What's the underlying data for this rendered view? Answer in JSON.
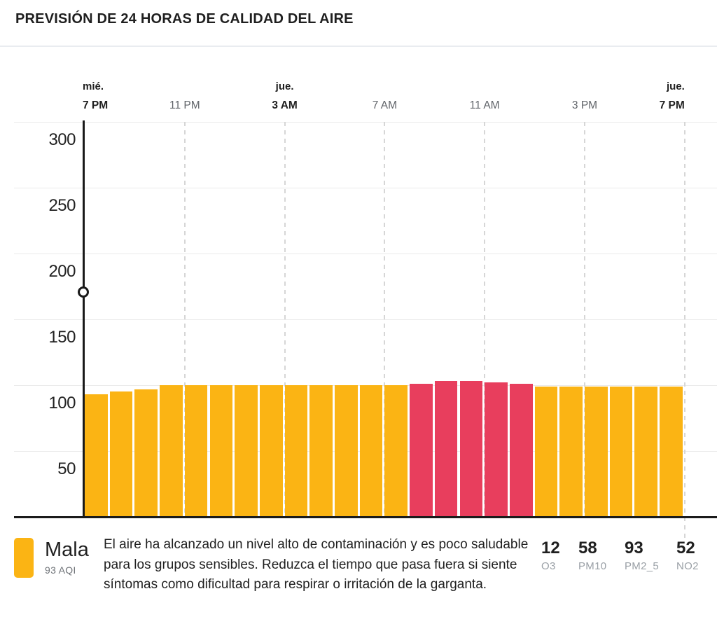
{
  "header": {
    "title": "PREVISIÓN DE 24 HORAS DE CALIDAD DEL AIRE"
  },
  "chart_data": {
    "type": "bar",
    "title": "PREVISIÓN DE 24 HORAS DE CALIDAD DEL AIRE",
    "xlabel": "",
    "ylabel": "",
    "ylim": [
      0,
      320
    ],
    "grid": true,
    "y_ticks": [
      300,
      250,
      200,
      150,
      100,
      50
    ],
    "x_ticks": [
      {
        "day": "mié.",
        "hour": "7 PM",
        "bold": true
      },
      {
        "day": "",
        "hour": "11 PM",
        "bold": false
      },
      {
        "day": "jue.",
        "hour": "3 AM",
        "bold": true
      },
      {
        "day": "",
        "hour": "7 AM",
        "bold": false
      },
      {
        "day": "",
        "hour": "11 AM",
        "bold": false
      },
      {
        "day": "",
        "hour": "3 PM",
        "bold": false
      },
      {
        "day": "jue.",
        "hour": "7 PM",
        "bold": true
      }
    ],
    "series": [
      {
        "name": "AQI",
        "values": [
          93,
          95,
          97,
          100,
          100,
          100,
          100,
          100,
          100,
          100,
          100,
          100,
          100,
          101,
          103,
          103,
          102,
          101,
          99,
          99,
          99,
          99,
          99,
          99
        ]
      }
    ],
    "levels": [
      "moderate",
      "moderate",
      "moderate",
      "moderate",
      "moderate",
      "moderate",
      "moderate",
      "moderate",
      "moderate",
      "moderate",
      "moderate",
      "moderate",
      "moderate",
      "unhealthy",
      "unhealthy",
      "unhealthy",
      "unhealthy",
      "unhealthy",
      "moderate",
      "moderate",
      "moderate",
      "moderate",
      "moderate",
      "moderate"
    ],
    "palette": {
      "moderate": "#FBB414",
      "unhealthy": "#E83E5D"
    },
    "now_marker": {
      "day": "mié.",
      "hour": "7 PM"
    },
    "legend_position": "bottom"
  },
  "legend": {
    "status_label": "Mala",
    "aqi_label": "93 AQI",
    "swatch_color": "#FBB414",
    "description": "El aire ha alcanzado un nivel alto de contaminación y es poco saludable para los grupos sensibles. Reduzca el tiempo que pasa fuera si siente síntomas como dificultad para respirar o irritación de la garganta."
  },
  "pollutants": [
    {
      "value": "12",
      "label": "O3"
    },
    {
      "value": "58",
      "label": "PM10"
    },
    {
      "value": "93",
      "label": "PM2_5"
    },
    {
      "value": "52",
      "label": "NO2"
    }
  ],
  "colors": {
    "bar_moderate": "#FBB414",
    "bar_unhealthy": "#E83E5D",
    "text_primary": "#1f1f1f",
    "text_secondary": "#6f7378",
    "text_tertiary": "#9aa0a6",
    "gridline": "#eaeaea",
    "dashed_line": "#d6d6d6",
    "axis_line": "#1b1b1b"
  }
}
